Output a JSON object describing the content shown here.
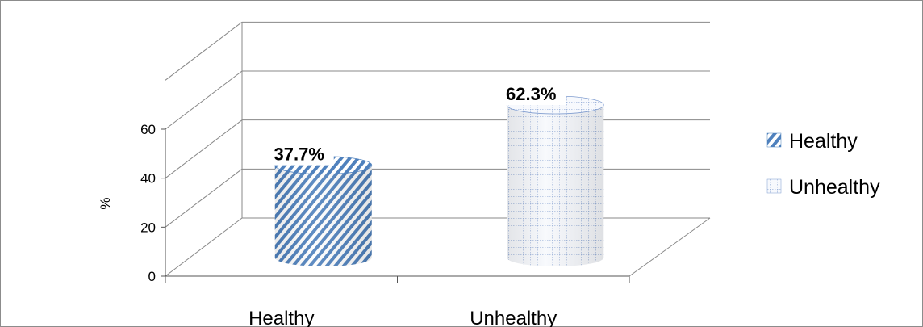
{
  "chart_data": {
    "type": "bar",
    "categories": [
      "Healthy",
      "Unhealthy"
    ],
    "series": [
      {
        "name": "Healthy",
        "values": [
          37.7,
          null
        ]
      },
      {
        "name": "Unhealthy",
        "values": [
          null,
          62.3
        ]
      }
    ],
    "data_labels": [
      "37.7%",
      "62.3%"
    ],
    "ylabel": "%",
    "xlabel": "",
    "title": "",
    "ylim": [
      0,
      80
    ],
    "yticks": [
      0,
      20,
      40,
      60
    ],
    "ytick_labels": [
      "0",
      "20",
      "40",
      "60"
    ],
    "grid": true,
    "legend_position": "right",
    "legend": [
      "Healthy",
      "Unhealthy"
    ],
    "colors": {
      "healthy": "#4f81bd",
      "unhealthy": "#7f9ccf",
      "gridline": "#888888",
      "frame": "#8c8c8c"
    },
    "patterns": {
      "healthy": "diagonal-stripes",
      "unhealthy": "grid"
    }
  }
}
